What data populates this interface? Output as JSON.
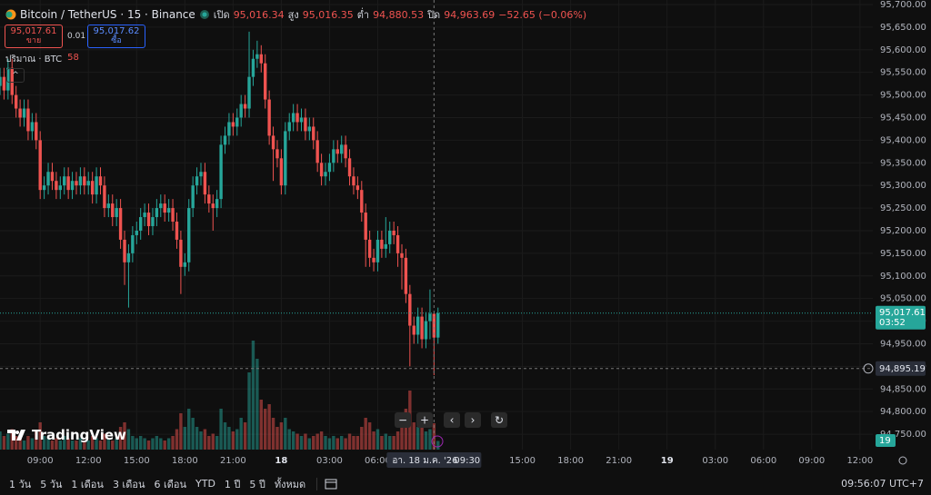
{
  "header": {
    "legend": [
      {
        "label": "เปิด",
        "value": "95,016.34"
      },
      {
        "label": "สูง",
        "value": "95,016.35"
      },
      {
        "label": "ต่ำ",
        "value": "94,880.53"
      },
      {
        "label": "ปิด",
        "value": "94,963.69"
      }
    ],
    "change": "−52.65 (−0.06%)"
  },
  "trade": {
    "sell_price": "95,017.61",
    "sell_label": "ขาย",
    "spread": "0.01",
    "buy_price": "95,017.62",
    "buy_label": "ซื้อ"
  },
  "volume_legend": "ปริมาณ · BTC",
  "brand": "TradingView",
  "ranges": [
    "1 วัน",
    "5 วัน",
    "1 เดือน",
    "3 เดือน",
    "6 เดือน",
    "YTD",
    "1 ปี",
    "5 ปี",
    "ทั้งหมด"
  ],
  "clock": "09:56:07 UTC+7",
  "chart_data": {
    "type": "candlestick",
    "title": "Bitcoin / TetherUS · 15 · Binance",
    "x": [
      6.5,
      6.75,
      7,
      7.25,
      7.5,
      7.75,
      8,
      8.25,
      8.5,
      8.75,
      9,
      9.25,
      9.5,
      9.75,
      10,
      10.25,
      10.5,
      10.75,
      11,
      11.25,
      11.5,
      11.75,
      12,
      12.25,
      12.5,
      12.75,
      13,
      13.25,
      13.5,
      13.75,
      14,
      14.25,
      14.5,
      14.75,
      15,
      15.25,
      15.5,
      15.75,
      16,
      16.25,
      16.5,
      16.75,
      17,
      17.25,
      17.5,
      17.75,
      18,
      18.25,
      18.5,
      18.75,
      19,
      19.25,
      19.5,
      19.75,
      20,
      20.25,
      20.5,
      20.75,
      21,
      21.25,
      21.5,
      21.75,
      22,
      22.25,
      22.5,
      22.75,
      23,
      23.25,
      23.5,
      23.75,
      24,
      24.25,
      24.5,
      24.75,
      25,
      25.25,
      25.5,
      25.75,
      26,
      26.25,
      26.5,
      26.75,
      27,
      27.25,
      27.5,
      27.75,
      28,
      28.25,
      28.5,
      28.75,
      29,
      29.25,
      29.5,
      29.75,
      30,
      30.25,
      30.5,
      30.75,
      31,
      31.25,
      31.5,
      31.75,
      32,
      32.25,
      32.5,
      32.75,
      33,
      33.25,
      33.5,
      33.75
    ],
    "open": [
      95520,
      95540,
      95510,
      95560,
      95500,
      95470,
      95450,
      95470,
      95420,
      95440,
      95400,
      95290,
      95300,
      95330,
      95310,
      95290,
      95300,
      95320,
      95290,
      95310,
      95300,
      95320,
      95300,
      95310,
      95280,
      95320,
      95300,
      95250,
      95260,
      95230,
      95250,
      95180,
      95130,
      95150,
      95190,
      95200,
      95230,
      95240,
      95210,
      95230,
      95250,
      95260,
      95240,
      95250,
      95220,
      95180,
      95120,
      95130,
      95250,
      95300,
      95320,
      95330,
      95280,
      95260,
      95250,
      95270,
      95390,
      95410,
      95440,
      95430,
      95450,
      95480,
      95470,
      95540,
      95580,
      95590,
      95570,
      95490,
      95410,
      95380,
      95360,
      95300,
      95420,
      95440,
      95460,
      95440,
      95450,
      95420,
      95430,
      95400,
      95350,
      95320,
      95330,
      95350,
      95380,
      95370,
      95390,
      95360,
      95320,
      95300,
      95290,
      95240,
      95180,
      95140,
      95130,
      95180,
      95160,
      95170,
      95200,
      95190,
      95150,
      95140,
      95060,
      94990,
      94970,
      95010,
      94960,
      95000,
      95016.34,
      94963.69
    ],
    "high": [
      95560,
      95560,
      95580,
      95580,
      95520,
      95490,
      95490,
      95490,
      95460,
      95460,
      95420,
      95320,
      95350,
      95350,
      95330,
      95320,
      95340,
      95340,
      95330,
      95330,
      95340,
      95340,
      95330,
      95330,
      95340,
      95340,
      95320,
      95280,
      95280,
      95270,
      95270,
      95200,
      95170,
      95210,
      95220,
      95250,
      95260,
      95260,
      95250,
      95270,
      95280,
      95280,
      95270,
      95270,
      95240,
      95200,
      95150,
      95270,
      95320,
      95340,
      95350,
      95350,
      95300,
      95280,
      95290,
      95410,
      95430,
      95460,
      95460,
      95470,
      95500,
      95500,
      95640,
      95600,
      95620,
      95610,
      95590,
      95510,
      95430,
      95400,
      95380,
      95440,
      95460,
      95480,
      95480,
      95470,
      95470,
      95450,
      95450,
      95420,
      95370,
      95350,
      95370,
      95400,
      95400,
      95410,
      95410,
      95380,
      95340,
      95320,
      95310,
      95260,
      95200,
      95160,
      95200,
      95200,
      95230,
      95220,
      95220,
      95210,
      95170,
      95160,
      95080,
      95010,
      95030,
      95030,
      95020,
      95070,
      95016.35,
      95030
    ],
    "low": [
      95500,
      95490,
      95490,
      95480,
      95450,
      95430,
      95430,
      95400,
      95400,
      95380,
      95270,
      95270,
      95280,
      95290,
      95270,
      95270,
      95280,
      95270,
      95270,
      95280,
      95280,
      95280,
      95280,
      95260,
      95260,
      95280,
      95230,
      95230,
      95210,
      95210,
      95160,
      95080,
      95030,
      95130,
      95170,
      95180,
      95210,
      95190,
      95190,
      95210,
      95230,
      95220,
      95220,
      95200,
      95160,
      95060,
      95100,
      95110,
      95230,
      95280,
      95300,
      95260,
      95240,
      95200,
      95230,
      95250,
      95370,
      95390,
      95410,
      95410,
      95430,
      95450,
      95450,
      95520,
      95560,
      95550,
      95470,
      95390,
      95310,
      95340,
      95280,
      95280,
      95400,
      95420,
      95420,
      95420,
      95400,
      95400,
      95380,
      95330,
      95300,
      95300,
      95310,
      95330,
      95350,
      95350,
      95340,
      95300,
      95280,
      95270,
      95220,
      95120,
      95120,
      95110,
      95110,
      95140,
      95140,
      95150,
      95170,
      95120,
      95070,
      95040,
      94900,
      94950,
      94950,
      94940,
      94940,
      94960,
      94880.53,
      94950
    ],
    "close": [
      95540,
      95510,
      95560,
      95500,
      95470,
      95450,
      95470,
      95420,
      95440,
      95400,
      95290,
      95300,
      95330,
      95310,
      95290,
      95300,
      95320,
      95290,
      95310,
      95300,
      95320,
      95300,
      95310,
      95280,
      95320,
      95300,
      95250,
      95260,
      95230,
      95250,
      95180,
      95130,
      95150,
      95190,
      95200,
      95230,
      95240,
      95210,
      95230,
      95250,
      95260,
      95240,
      95250,
      95220,
      95180,
      95120,
      95130,
      95250,
      95300,
      95320,
      95330,
      95280,
      95260,
      95250,
      95270,
      95390,
      95410,
      95440,
      95430,
      95450,
      95480,
      95470,
      95540,
      95580,
      95590,
      95570,
      95490,
      95410,
      95380,
      95360,
      95300,
      95420,
      95440,
      95460,
      95440,
      95450,
      95420,
      95430,
      95400,
      95350,
      95320,
      95330,
      95350,
      95380,
      95370,
      95390,
      95360,
      95320,
      95300,
      95290,
      95240,
      95180,
      95140,
      95130,
      95180,
      95160,
      95170,
      95200,
      95190,
      95150,
      95140,
      95060,
      94990,
      94970,
      95010,
      94960,
      95000,
      95016.34,
      94963.69,
      95017.61
    ],
    "volume": [
      40,
      30,
      35,
      45,
      30,
      25,
      20,
      30,
      25,
      40,
      60,
      30,
      25,
      20,
      25,
      20,
      30,
      25,
      20,
      20,
      25,
      20,
      20,
      30,
      25,
      20,
      35,
      25,
      20,
      25,
      50,
      60,
      45,
      30,
      25,
      30,
      25,
      20,
      25,
      30,
      25,
      20,
      25,
      30,
      45,
      80,
      50,
      90,
      70,
      50,
      40,
      45,
      30,
      35,
      30,
      90,
      60,
      50,
      40,
      45,
      70,
      60,
      170,
      240,
      200,
      110,
      90,
      100,
      70,
      50,
      60,
      70,
      45,
      40,
      35,
      30,
      35,
      25,
      30,
      35,
      40,
      30,
      25,
      30,
      25,
      30,
      25,
      35,
      30,
      30,
      50,
      70,
      60,
      40,
      45,
      30,
      35,
      30,
      30,
      40,
      70,
      90,
      130,
      60,
      50,
      60,
      40,
      45,
      58,
      19
    ],
    "up_color": "#26a69a",
    "down_color": "#ef5350",
    "grid": true,
    "xlim": [
      6.5,
      60.8
    ],
    "xticks": [
      {
        "value": 9,
        "label": "09:00"
      },
      {
        "value": 12,
        "label": "12:00"
      },
      {
        "value": 15,
        "label": "15:00"
      },
      {
        "value": 18,
        "label": "18:00"
      },
      {
        "value": 21,
        "label": "21:00"
      },
      {
        "value": 24,
        "label": "18"
      },
      {
        "value": 27,
        "label": "03:00"
      },
      {
        "value": 30,
        "label": "06:00"
      },
      {
        "value": 39,
        "label": "15:00"
      },
      {
        "value": 42,
        "label": "18:00"
      },
      {
        "value": 45,
        "label": "21:00"
      },
      {
        "value": 48,
        "label": "19"
      },
      {
        "value": 51,
        "label": "03:00"
      },
      {
        "value": 54,
        "label": "06:00"
      },
      {
        "value": 57,
        "label": "09:00"
      },
      {
        "value": 60,
        "label": "12:00"
      }
    ],
    "ylim": [
      94716,
      95710
    ],
    "yticks": [
      {
        "value": 94750,
        "label": "94,750.00"
      },
      {
        "value": 94800,
        "label": "94,800.00"
      },
      {
        "value": 94850,
        "label": "94,850.00"
      },
      {
        "value": 94900,
        "label": "94,900.00"
      },
      {
        "value": 94950,
        "label": "94,950.00"
      },
      {
        "value": 95000,
        "label": "95,000.00"
      },
      {
        "value": 95050,
        "label": "95,050.00"
      },
      {
        "value": 95100,
        "label": "95,100.00"
      },
      {
        "value": 95150,
        "label": "95,150.00"
      },
      {
        "value": 95200,
        "label": "95,200.00"
      },
      {
        "value": 95250,
        "label": "95,250.00"
      },
      {
        "value": 95300,
        "label": "95,300.00"
      },
      {
        "value": 95350,
        "label": "95,350.00"
      },
      {
        "value": 95400,
        "label": "95,400.00"
      },
      {
        "value": 95450,
        "label": "95,450.00"
      },
      {
        "value": 95500,
        "label": "95,500.00"
      },
      {
        "value": 95550,
        "label": "95,550.00"
      },
      {
        "value": 95600,
        "label": "95,600.00"
      },
      {
        "value": 95650,
        "label": "95,650.00"
      },
      {
        "value": 95700,
        "label": "95,700.00"
      }
    ],
    "volume_ylim": [
      0,
      260
    ],
    "last_price": {
      "value": 95017.61,
      "label": "95,017.61",
      "countdown": "03:52"
    },
    "crosshair": {
      "x": 33.5,
      "date": "อา. 18 ม.ค. '26",
      "time": "09:30",
      "y": 94895.19,
      "y_label": "94,895.19"
    }
  }
}
